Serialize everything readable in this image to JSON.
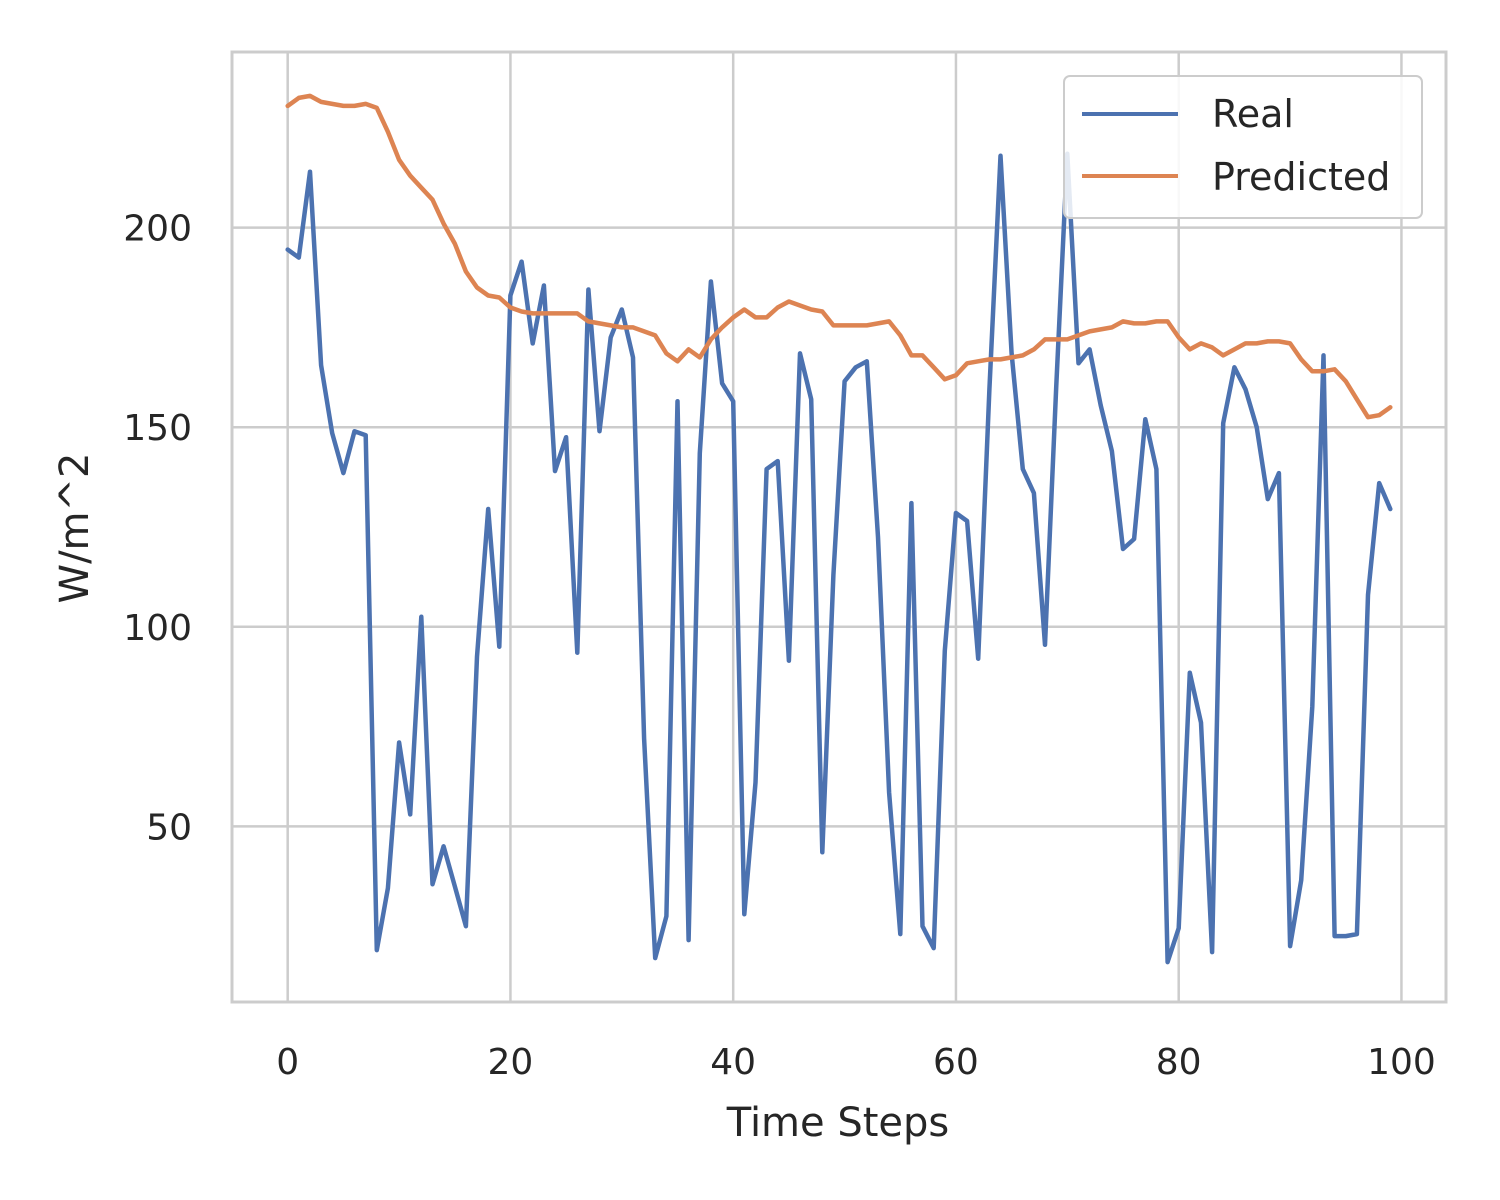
{
  "chart_data": {
    "type": "line",
    "title": "",
    "xlabel": "Time Steps",
    "ylabel": "W/m^2",
    "xlim": [
      -5,
      104
    ],
    "ylim": [
      6,
      244
    ],
    "xticks": [
      0,
      20,
      40,
      60,
      80,
      100
    ],
    "xtick_labels": [
      "0",
      "20",
      "40",
      "60",
      "80",
      "100"
    ],
    "yticks": [
      50,
      100,
      150,
      200
    ],
    "ytick_labels": [
      "50",
      "100",
      "150",
      "200"
    ],
    "grid": true,
    "legend_position": "top-right",
    "series": [
      {
        "name": "Real",
        "color": "#4c72b0",
        "x": [
          0,
          1,
          2,
          3,
          4,
          5,
          6,
          7,
          8,
          9,
          10,
          11,
          12,
          13,
          14,
          15,
          16,
          17,
          18,
          19,
          20,
          21,
          22,
          23,
          24,
          25,
          26,
          27,
          28,
          29,
          30,
          31,
          32,
          33,
          34,
          35,
          36,
          37,
          38,
          39,
          40,
          41,
          42,
          43,
          44,
          45,
          46,
          47,
          48,
          49,
          50,
          51,
          52,
          53,
          54,
          55,
          56,
          57,
          58,
          59,
          60,
          61,
          62,
          63,
          64,
          65,
          66,
          67,
          68,
          69,
          70,
          71,
          72,
          73,
          74,
          75,
          76,
          77,
          78,
          79,
          80,
          81,
          82,
          83,
          84,
          85,
          86,
          87,
          88,
          89,
          90,
          91,
          92,
          93,
          94,
          95,
          96,
          97,
          98,
          99
        ],
        "values": [
          194.5,
          192.5,
          214,
          165.5,
          148.5,
          138.5,
          149,
          148,
          19,
          34.5,
          71,
          53,
          102.5,
          35.5,
          45,
          35,
          25,
          92.5,
          129.5,
          95,
          183,
          191.5,
          171,
          185.5,
          139,
          147.5,
          93.5,
          184.5,
          149,
          172.5,
          179.5,
          167.5,
          72,
          17,
          27.5,
          156.5,
          21.5,
          143.5,
          186.5,
          161,
          156.5,
          28,
          61,
          139.5,
          141.5,
          91.5,
          168.5,
          157,
          43.5,
          113,
          161.5,
          165,
          166.5,
          122.5,
          58.5,
          23,
          131,
          25,
          19.5,
          94,
          128.5,
          126.5,
          92,
          159.5,
          218,
          168.5,
          139.5,
          133.5,
          95.5,
          160,
          218.5,
          166,
          169.5,
          155.5,
          144,
          119.5,
          122,
          152,
          139.5,
          16,
          24.5,
          88.5,
          76,
          18.5,
          151,
          165,
          159.5,
          150,
          132,
          138.5,
          20,
          36.5,
          80,
          168,
          22.5,
          22.5,
          23,
          108,
          136,
          129.5
        ]
      },
      {
        "name": "Predicted",
        "color": "#dd8452",
        "x": [
          0,
          1,
          2,
          3,
          4,
          5,
          6,
          7,
          8,
          9,
          10,
          11,
          12,
          13,
          14,
          15,
          16,
          17,
          18,
          19,
          20,
          21,
          22,
          23,
          24,
          25,
          26,
          27,
          28,
          29,
          30,
          31,
          32,
          33,
          34,
          35,
          36,
          37,
          38,
          39,
          40,
          41,
          42,
          43,
          44,
          45,
          46,
          47,
          48,
          49,
          50,
          51,
          52,
          53,
          54,
          55,
          56,
          57,
          58,
          59,
          60,
          61,
          62,
          63,
          64,
          65,
          66,
          67,
          68,
          69,
          70,
          71,
          72,
          73,
          74,
          75,
          76,
          77,
          78,
          79,
          80,
          81,
          82,
          83,
          84,
          85,
          86,
          87,
          88,
          89,
          90,
          91,
          92,
          93,
          94,
          95,
          96,
          97,
          98,
          99
        ],
        "values": [
          230.5,
          232.5,
          233,
          231.5,
          231,
          230.5,
          230.5,
          231,
          230,
          224,
          217,
          213,
          210,
          207,
          201,
          196,
          189,
          185,
          183,
          182.5,
          180,
          179,
          178.5,
          178.5,
          178.5,
          178.5,
          178.5,
          176.5,
          176,
          175.5,
          175,
          175,
          174,
          173,
          168.5,
          166.5,
          169.5,
          167.5,
          172,
          175,
          177.5,
          179.5,
          177.5,
          177.5,
          180,
          181.5,
          180.5,
          179.5,
          179,
          175.5,
          175.5,
          175.5,
          175.5,
          176,
          176.5,
          173,
          168,
          168,
          165,
          162,
          163,
          166,
          166.5,
          167,
          167,
          167.5,
          168,
          169.5,
          172,
          172,
          172,
          173,
          174,
          174.5,
          175,
          176.5,
          176,
          176,
          176.5,
          176.5,
          172.5,
          169.5,
          171,
          170,
          168,
          169.5,
          171,
          171,
          171.5,
          171.5,
          171,
          167,
          164,
          164,
          164.5,
          161.5,
          157,
          152.5,
          153,
          155
        ]
      }
    ]
  }
}
